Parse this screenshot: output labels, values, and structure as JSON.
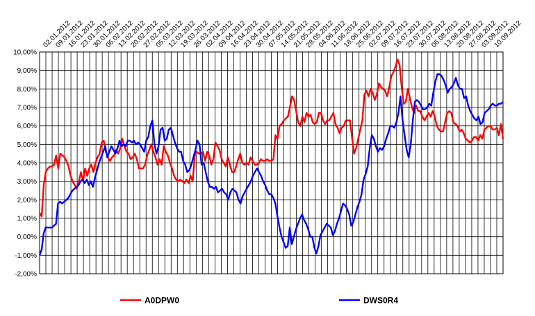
{
  "chart_data": {
    "type": "line",
    "title": "",
    "xlabel": "",
    "ylabel": "",
    "ylim": [
      -2,
      10
    ],
    "y_ticks": [
      -2,
      -1,
      0,
      1,
      2,
      3,
      4,
      5,
      6,
      7,
      8,
      9,
      10
    ],
    "y_tick_labels": [
      "-2,00%",
      "-1,00%",
      "0,00%",
      "1,00%",
      "2,00%",
      "3,00%",
      "4,00%",
      "5,00%",
      "6,00%",
      "7,00%",
      "8,00%",
      "9,00%",
      "10,00%"
    ],
    "grid": true,
    "legend_position": "bottom",
    "x_tick_labels": [
      "02.01.2012",
      "09.01.2012",
      "16.01.2012",
      "23.01.2012",
      "30.01.2012",
      "06.02.2012",
      "13.02.2012",
      "20.02.2012",
      "27.02.2012",
      "05.03.2012",
      "12.03.2012",
      "19.03.2012",
      "26.03.2012",
      "02.04.2012",
      "09.04.2012",
      "16.04.2012",
      "23.04.2012",
      "30.04.2012",
      "07.05.2012",
      "14.05.2012",
      "21.05.2012",
      "28.05.2012",
      "04.06.2012",
      "11.06.2012",
      "18.06.2012",
      "25.06.2012",
      "02.07.2012",
      "09.07.2012",
      "16.07.2012",
      "23.07.2012",
      "30.07.2012",
      "06.08.2012",
      "13.08.2012",
      "20.08.2012",
      "27.08.2012",
      "03.09.2012",
      "10.09.2012"
    ],
    "series": [
      {
        "name": "A0DPW0",
        "color": "#ff0000",
        "values": [
          1.3,
          1.1,
          2.8,
          3.5,
          3.7,
          3.8,
          3.8,
          3.9,
          4.4,
          3.7,
          4.5,
          4.4,
          4.3,
          4.1,
          3.8,
          3.3,
          3.0,
          2.8,
          2.6,
          3.0,
          3.5,
          3.0,
          3.7,
          3.3,
          3.7,
          3.9,
          3.5,
          4.0,
          4.3,
          4.5,
          5.1,
          5.2,
          4.6,
          4.3,
          4.1,
          4.3,
          4.4,
          4.7,
          4.5,
          4.8,
          5.3,
          4.9,
          4.6,
          4.5,
          4.2,
          4.3,
          4.5,
          4.2,
          3.7,
          3.7,
          3.7,
          3.9,
          4.4,
          4.7,
          5.0,
          4.6,
          4.3,
          3.9,
          4.2,
          3.9,
          4.9,
          4.6,
          4.4,
          4.0,
          3.7,
          3.3,
          3.1,
          3.0,
          3.1,
          3.0,
          2.9,
          3.1,
          2.9,
          3.3,
          3.0,
          4.4,
          4.6,
          4.5,
          4.5,
          4.6,
          4.1,
          4.6,
          4.4,
          3.9,
          4.2,
          5.1,
          4.9,
          4.7,
          4.2,
          4.0,
          3.8,
          4.3,
          3.9,
          3.5,
          3.5,
          3.8,
          4.2,
          4.5,
          4.0,
          3.9,
          4.0,
          3.9,
          4.3,
          4.1,
          3.9,
          3.9,
          4.0,
          4.2,
          4.1,
          4.1,
          4.2,
          4.1,
          4.1,
          4.2,
          5.5,
          5.3,
          6.0,
          6.1,
          6.3,
          6.4,
          6.5,
          7.0,
          7.6,
          7.4,
          6.8,
          6.2,
          6.0,
          6.5,
          6.2,
          6.7,
          6.5,
          6.6,
          6.2,
          6.1,
          6.2,
          6.7,
          6.7,
          6.3,
          6.1,
          6.3,
          6.3,
          6.5,
          6.7,
          6.1,
          5.9,
          5.6,
          5.9,
          6.0,
          6.3,
          6.3,
          6.3,
          5.4,
          4.5,
          4.8,
          5.3,
          5.8,
          6.3,
          7.7,
          7.9,
          7.6,
          8.0,
          7.8,
          7.4,
          7.7,
          8.3,
          8.1,
          8.0,
          7.9,
          7.6,
          8.1,
          8.7,
          8.9,
          9.2,
          9.6,
          9.3,
          8.1,
          7.2,
          7.3,
          8.0,
          7.5,
          7.0,
          6.7,
          7.1,
          6.8,
          6.8,
          6.5,
          6.3,
          6.5,
          6.7,
          6.5,
          6.8,
          6.5,
          6.0,
          5.8,
          5.7,
          5.7,
          6.2,
          6.7,
          6.8,
          6.7,
          6.2,
          6.1,
          6.0,
          5.7,
          5.8,
          5.6,
          5.3,
          5.2,
          5.1,
          5.2,
          5.4,
          5.4,
          5.2,
          5.5,
          5.3,
          5.8,
          5.9,
          6.0,
          6.0,
          5.8,
          5.8,
          5.9,
          5.5,
          6.1,
          5.3
        ]
      },
      {
        "name": "DWS0R4",
        "color": "#0000ff",
        "values": [
          -1.0,
          -0.7,
          0.2,
          0.5,
          0.5,
          0.5,
          0.5,
          0.6,
          0.7,
          1.8,
          1.9,
          1.8,
          1.9,
          2.0,
          2.1,
          2.3,
          2.5,
          2.6,
          2.7,
          2.8,
          3.0,
          3.1,
          2.9,
          3.1,
          2.8,
          3.0,
          2.7,
          3.2,
          3.6,
          4.0,
          4.3,
          4.6,
          4.9,
          4.3,
          4.6,
          4.9,
          4.7,
          4.5,
          4.8,
          5.2,
          4.9,
          5.0,
          4.9,
          5.2,
          5.2,
          5.1,
          5.2,
          5.0,
          5.1,
          5.0,
          4.8,
          4.6,
          5.2,
          5.4,
          6.0,
          6.3,
          5.0,
          4.5,
          4.9,
          5.8,
          5.9,
          5.2,
          5.3,
          5.8,
          5.9,
          5.5,
          5.1,
          4.8,
          4.6,
          4.6,
          4.1,
          3.9,
          3.5,
          3.6,
          3.9,
          4.3,
          4.7,
          5.2,
          5.0,
          3.9,
          4.0,
          3.5,
          3.0,
          2.7,
          2.7,
          2.6,
          2.7,
          2.4,
          2.5,
          2.6,
          2.4,
          2.3,
          2.0,
          2.4,
          2.6,
          2.5,
          2.4,
          2.0,
          1.8,
          2.2,
          2.4,
          2.6,
          2.8,
          3.0,
          3.3,
          3.5,
          3.7,
          3.5,
          3.3,
          3.0,
          2.8,
          2.5,
          2.3,
          2.3,
          2.1,
          1.8,
          1.1,
          0.5,
          0.0,
          -0.3,
          -0.6,
          -0.5,
          0.5,
          -0.4,
          0.0,
          0.4,
          0.7,
          1.0,
          1.2,
          0.9,
          0.7,
          0.4,
          0.0,
          0.0,
          -0.6,
          -0.9,
          -0.5,
          0.1,
          0.3,
          0.5,
          0.7,
          0.6,
          0.5,
          0.1,
          0.3,
          0.7,
          1.0,
          1.4,
          1.8,
          1.7,
          1.5,
          1.2,
          0.6,
          0.8,
          1.2,
          1.6,
          1.9,
          2.3,
          3.1,
          3.4,
          3.8,
          4.8,
          5.5,
          5.3,
          4.9,
          4.6,
          4.8,
          4.7,
          4.9,
          5.3,
          5.6,
          6.0,
          6.0,
          5.9,
          6.2,
          6.7,
          7.6,
          6.3,
          5.5,
          4.7,
          4.3,
          5.0,
          6.3,
          7.3,
          7.4,
          7.3,
          7.1,
          6.9,
          6.9,
          7.0,
          7.2,
          7.1,
          7.8,
          8.4,
          8.8,
          8.8,
          8.7,
          8.5,
          8.2,
          7.8,
          8.0,
          8.1,
          8.3,
          8.6,
          8.2,
          8.0,
          8.0,
          7.5,
          7.6,
          7.1,
          6.8,
          6.6,
          6.4,
          6.3,
          6.5,
          6.1,
          6.2,
          6.7,
          6.8,
          6.9,
          7.1,
          7.2,
          7.1,
          7.1,
          7.2,
          7.2,
          7.3
        ]
      }
    ]
  }
}
